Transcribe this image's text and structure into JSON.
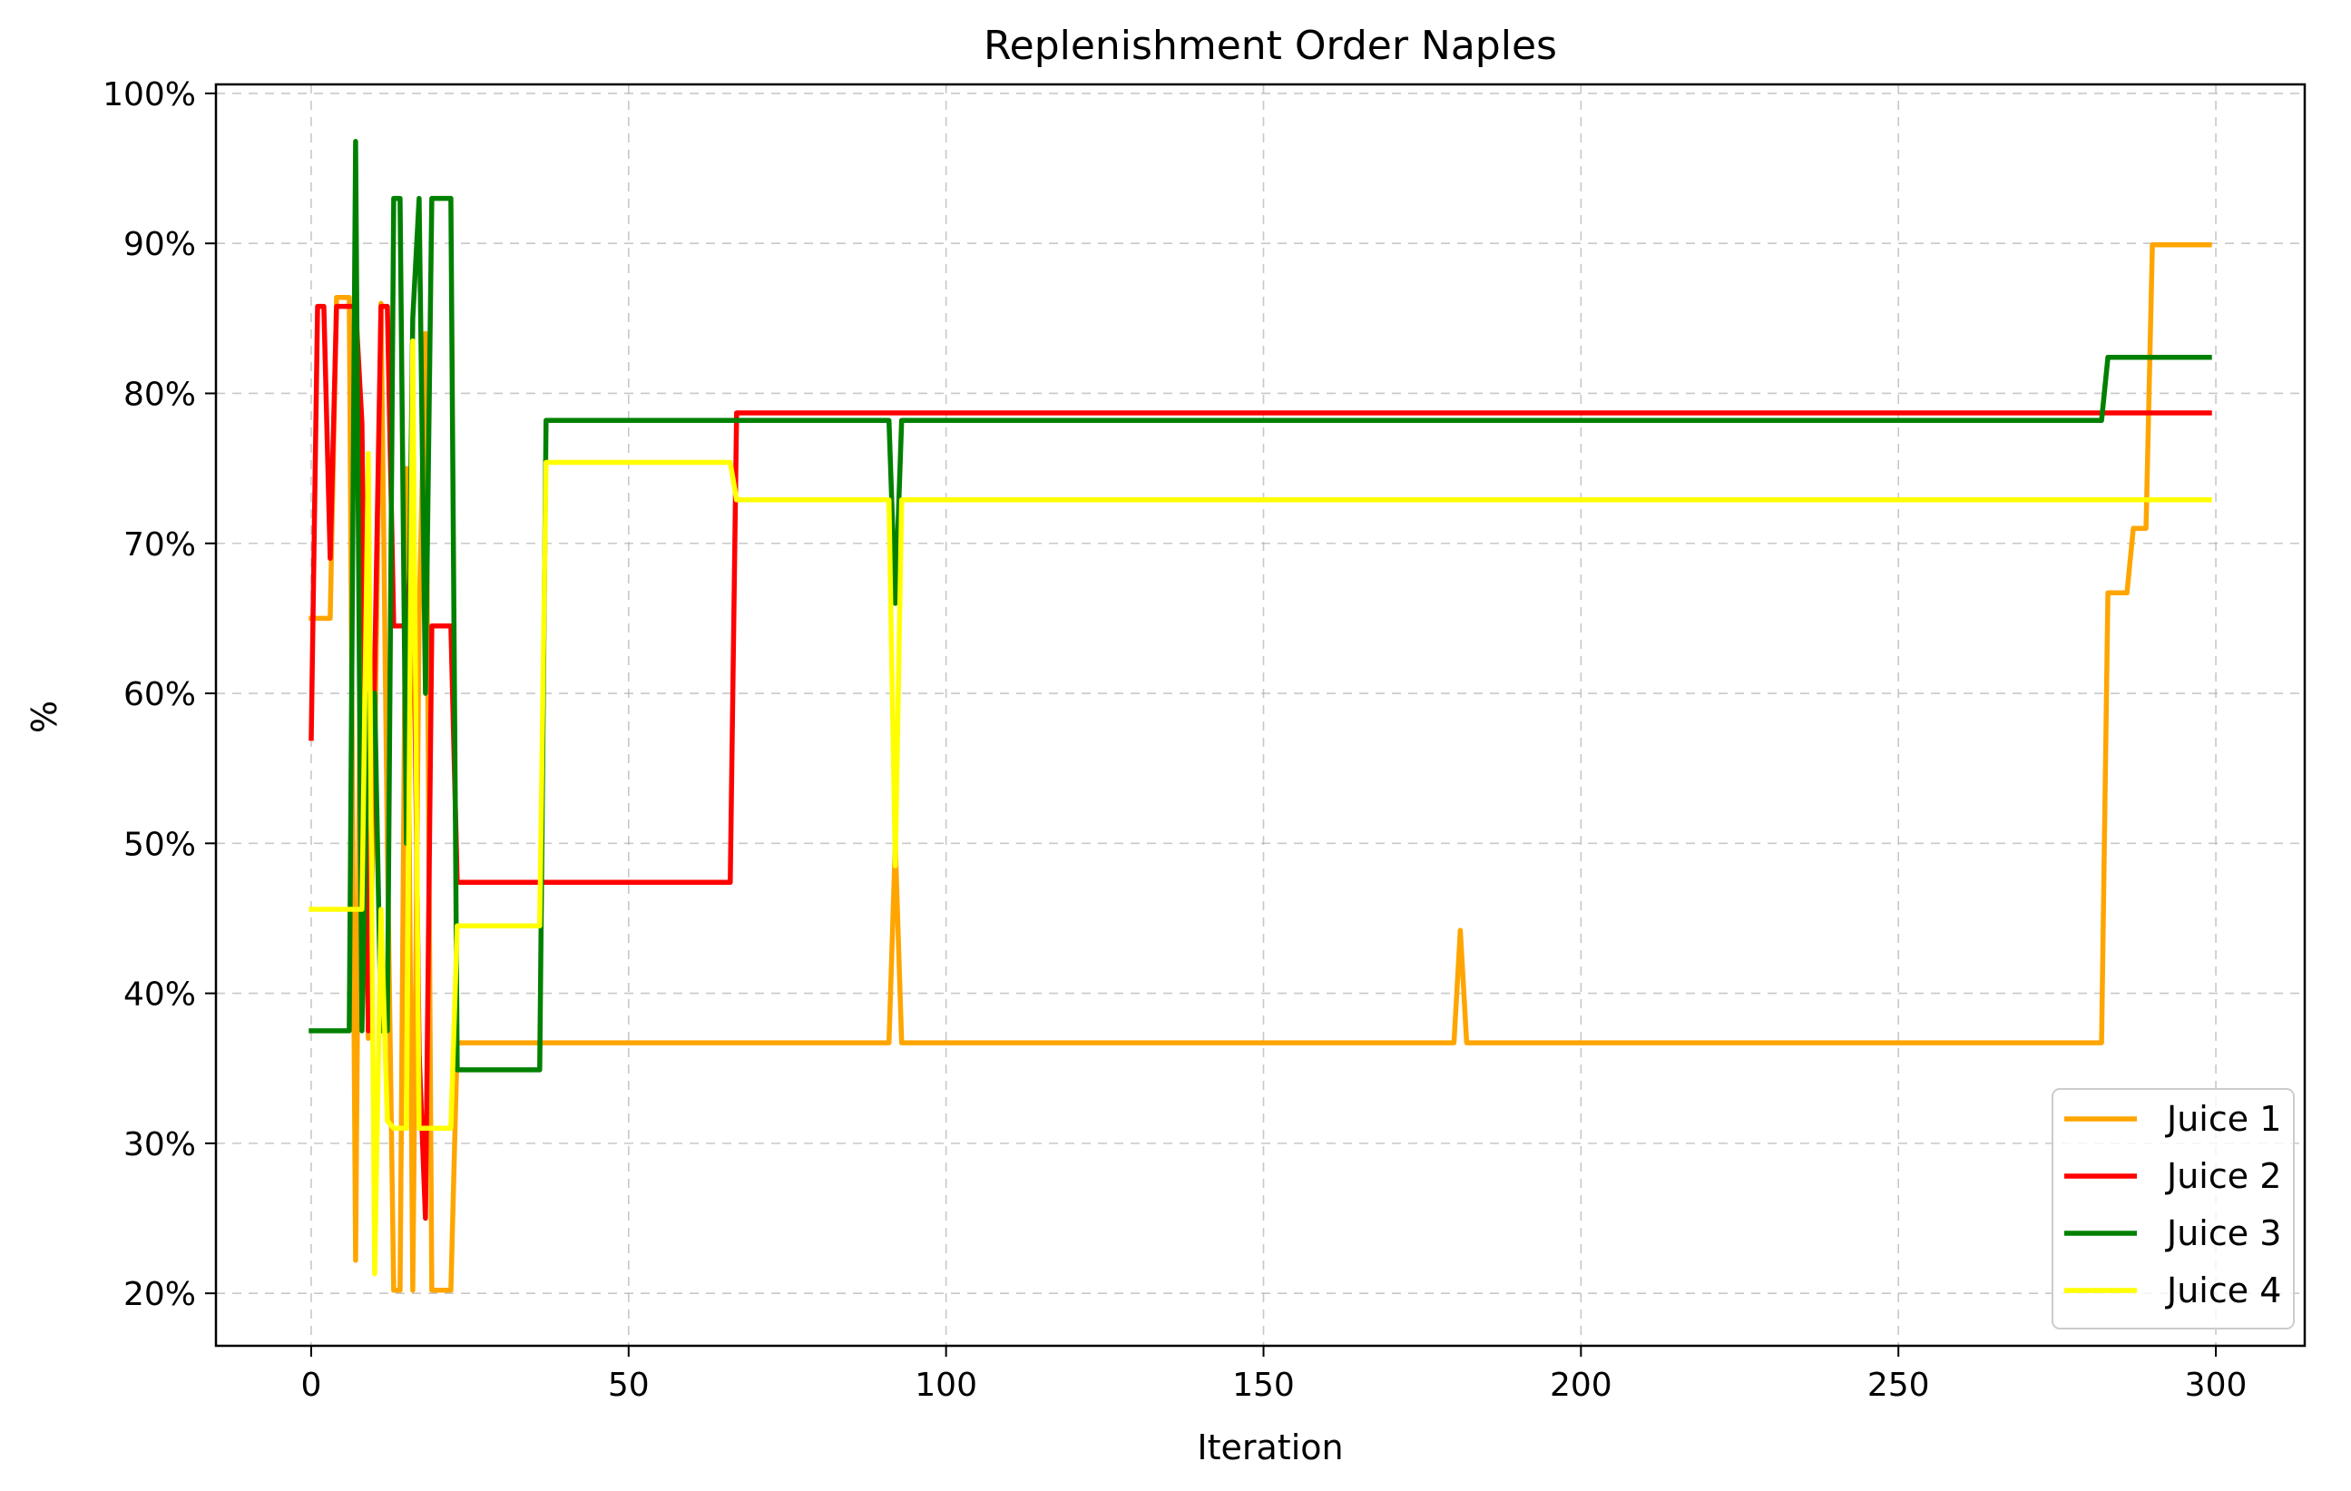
{
  "chart_data": {
    "type": "line",
    "title": "Replenishment Order Naples",
    "xlabel": "Iteration",
    "ylabel": "%",
    "xlim": [
      -15,
      314
    ],
    "ylim": [
      16.5,
      100.6
    ],
    "xticks": [
      0,
      50,
      100,
      150,
      200,
      250,
      300
    ],
    "yticks": [
      20,
      30,
      40,
      50,
      60,
      70,
      80,
      90,
      100
    ],
    "ytick_suffix": "%",
    "grid": true,
    "legend_position": "lower-right",
    "series": [
      {
        "name": "Juice 1",
        "color": "#FFA500",
        "points": [
          [
            0,
            65
          ],
          [
            3,
            65
          ],
          [
            4,
            86.4
          ],
          [
            6,
            86.4
          ],
          [
            7,
            22.2
          ],
          [
            8,
            77
          ],
          [
            9,
            37
          ],
          [
            10,
            55
          ],
          [
            11,
            86
          ],
          [
            12,
            50
          ],
          [
            13,
            20.2
          ],
          [
            14,
            20.2
          ],
          [
            15,
            75
          ],
          [
            16,
            20.2
          ],
          [
            17,
            65
          ],
          [
            18,
            84
          ],
          [
            19,
            20.2
          ],
          [
            22,
            20.2
          ],
          [
            23,
            36.7
          ],
          [
            91,
            36.7
          ],
          [
            92,
            50
          ],
          [
            93,
            36.7
          ],
          [
            180,
            36.7
          ],
          [
            181,
            44.2
          ],
          [
            182,
            36.7
          ],
          [
            282,
            36.7
          ],
          [
            283,
            66.7
          ],
          [
            286,
            66.7
          ],
          [
            287,
            71
          ],
          [
            289,
            71
          ],
          [
            290,
            89.9
          ],
          [
            299,
            89.9
          ]
        ]
      },
      {
        "name": "Juice 2",
        "color": "#FF0000",
        "points": [
          [
            0,
            57
          ],
          [
            1,
            85.8
          ],
          [
            2,
            85.8
          ],
          [
            3,
            69
          ],
          [
            4,
            85.8
          ],
          [
            7,
            85.8
          ],
          [
            8,
            78
          ],
          [
            9,
            37.5
          ],
          [
            10,
            61.5
          ],
          [
            11,
            85.8
          ],
          [
            12,
            85.8
          ],
          [
            13,
            64.5
          ],
          [
            14,
            64.5
          ],
          [
            15,
            64.5
          ],
          [
            16,
            71
          ],
          [
            17,
            36
          ],
          [
            18,
            25
          ],
          [
            19,
            64.5
          ],
          [
            22,
            64.5
          ],
          [
            23,
            47.4
          ],
          [
            66,
            47.4
          ],
          [
            67,
            78.7
          ],
          [
            299,
            78.7
          ]
        ]
      },
      {
        "name": "Juice 3",
        "color": "#008000",
        "points": [
          [
            0,
            37.5
          ],
          [
            6,
            37.5
          ],
          [
            7,
            96.8
          ],
          [
            8,
            37.5
          ],
          [
            9,
            60
          ],
          [
            10,
            60
          ],
          [
            11,
            37.5
          ],
          [
            12,
            37.5
          ],
          [
            13,
            93
          ],
          [
            14,
            93
          ],
          [
            15,
            50
          ],
          [
            16,
            85
          ],
          [
            17,
            93
          ],
          [
            18,
            60
          ],
          [
            19,
            93
          ],
          [
            22,
            93
          ],
          [
            23,
            34.9
          ],
          [
            36,
            34.9
          ],
          [
            37,
            78.2
          ],
          [
            91,
            78.2
          ],
          [
            92,
            66
          ],
          [
            93,
            78.2
          ],
          [
            282,
            78.2
          ],
          [
            283,
            82.4
          ],
          [
            299,
            82.4
          ]
        ]
      },
      {
        "name": "Juice 4",
        "color": "#FFFF00",
        "points": [
          [
            0,
            45.6
          ],
          [
            8,
            45.6
          ],
          [
            9,
            76
          ],
          [
            10,
            21.3
          ],
          [
            11,
            45.6
          ],
          [
            12,
            31.5
          ],
          [
            13,
            31
          ],
          [
            15,
            31
          ],
          [
            16,
            83.5
          ],
          [
            17,
            31
          ],
          [
            22,
            31
          ],
          [
            23,
            44.5
          ],
          [
            36,
            44.5
          ],
          [
            37,
            75.4
          ],
          [
            66,
            75.4
          ],
          [
            67,
            72.9
          ],
          [
            91,
            72.9
          ],
          [
            92,
            48.5
          ],
          [
            93,
            72.9
          ],
          [
            299,
            72.9
          ]
        ]
      }
    ]
  }
}
